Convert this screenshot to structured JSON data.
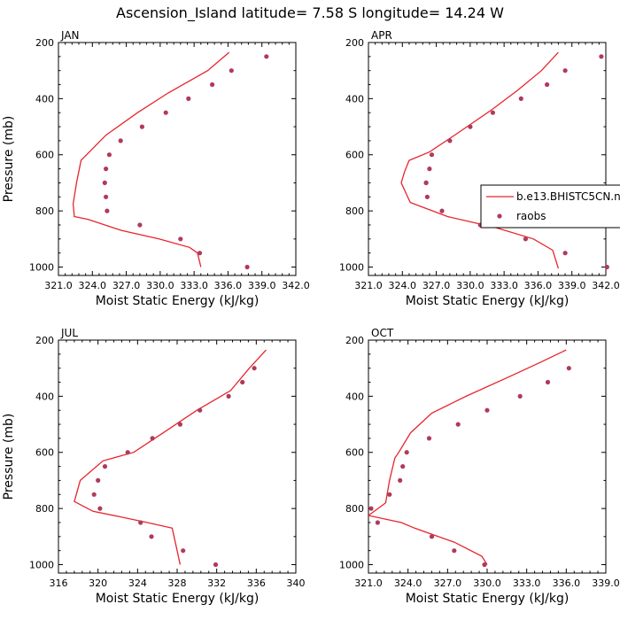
{
  "figure": {
    "title": "Ascension_Island  latitude= 7.58 S longitude= 14.24 W"
  },
  "legend": {
    "placement": "right-middle of APR panel",
    "model_label": "b.e13.BHISTC5CN.n",
    "obs_label": "raobs"
  },
  "colors": {
    "model_line": "#e8242c",
    "obs_marker": "#b03a5b",
    "axis": "#000000"
  },
  "chart_data": [
    {
      "type": "line",
      "panel": "JAN",
      "title": "JAN",
      "xlabel": "Moist Static Energy (kJ/kg)",
      "ylabel": "Pressure (mb)",
      "xlim": [
        321.0,
        342.0
      ],
      "ylim": [
        1030,
        200
      ],
      "xticks": [
        321.0,
        324.0,
        327.0,
        330.0,
        333.0,
        336.0,
        339.0,
        342.0
      ],
      "xtick_labels": [
        "321.0",
        "324.0",
        "327.0",
        "330.0",
        "333.0",
        "336.0",
        "339.0",
        "342.0"
      ],
      "yticks": [
        200,
        400,
        600,
        800,
        1000
      ],
      "ytick_labels": [
        "200",
        "400",
        "600",
        "800",
        "1000"
      ],
      "series": [
        {
          "kind": "line",
          "x": [
            336.1,
            334.2,
            330.7,
            328.0,
            325.2,
            323.0,
            322.6,
            322.3,
            322.4,
            323.6,
            326.6,
            329.9,
            332.6,
            333.3,
            333.6
          ],
          "y": [
            235,
            300,
            380,
            450,
            530,
            620,
            700,
            775,
            820,
            830,
            870,
            900,
            930,
            950,
            1000
          ]
        },
        {
          "kind": "scatter",
          "x": [
            339.4,
            336.3,
            334.6,
            332.5,
            330.5,
            328.4,
            326.5,
            325.5,
            325.2,
            325.1,
            325.2,
            325.3,
            328.2,
            331.8,
            333.5,
            337.7
          ],
          "y": [
            250,
            300,
            350,
            400,
            450,
            500,
            550,
            600,
            650,
            700,
            750,
            800,
            850,
            900,
            950,
            1000
          ]
        }
      ]
    },
    {
      "type": "line",
      "panel": "APR",
      "title": "APR",
      "xlabel": "Moist Static Energy (kJ/kg)",
      "ylabel": "",
      "xlim": [
        321.0,
        342.0
      ],
      "ylim": [
        1030,
        200
      ],
      "xticks": [
        321.0,
        324.0,
        327.0,
        330.0,
        333.0,
        336.0,
        339.0,
        342.0
      ],
      "xtick_labels": [
        "321.0",
        "324.0",
        "327.0",
        "330.0",
        "333.0",
        "336.0",
        "339.0",
        "342.0"
      ],
      "yticks": [
        200,
        400,
        600,
        800,
        1000
      ],
      "ytick_labels": [
        "200",
        "400",
        "600",
        "800",
        "1000"
      ],
      "series": [
        {
          "kind": "line",
          "x": [
            337.8,
            336.3,
            334.2,
            331.9,
            329.0,
            326.4,
            324.6,
            324.2,
            323.9,
            324.7,
            328.0,
            332.3,
            335.6,
            337.3,
            337.8
          ],
          "y": [
            235,
            300,
            370,
            440,
            520,
            590,
            620,
            660,
            700,
            770,
            820,
            860,
            900,
            940,
            1005
          ]
        },
        {
          "kind": "scatter",
          "x": [
            341.6,
            338.4,
            336.8,
            334.5,
            332.0,
            330.0,
            328.2,
            326.6,
            326.4,
            326.1,
            326.1,
            326.2,
            327.5,
            330.9,
            334.9,
            338.4,
            342.1
          ],
          "y": [
            250,
            300,
            350,
            400,
            450,
            500,
            550,
            600,
            650,
            700,
            700,
            750,
            800,
            850,
            900,
            950,
            1000
          ]
        }
      ]
    },
    {
      "type": "line",
      "panel": "JUL",
      "title": "JUL",
      "xlabel": "Moist Static Energy (kJ/kg)",
      "ylabel": "Pressure (mb)",
      "xlim": [
        316,
        340
      ],
      "ylim": [
        1030,
        200
      ],
      "xticks": [
        316,
        320,
        324,
        328,
        332,
        336,
        340
      ],
      "xtick_labels": [
        "316",
        "320",
        "324",
        "328",
        "332",
        "336",
        "340"
      ],
      "yticks": [
        200,
        400,
        600,
        800,
        1000
      ],
      "ytick_labels": [
        "200",
        "400",
        "600",
        "800",
        "1000"
      ],
      "series": [
        {
          "kind": "line",
          "x": [
            337.0,
            335.3,
            333.4,
            330.0,
            326.6,
            323.6,
            320.5,
            318.2,
            317.6,
            319.5,
            322.3,
            325.0,
            327.5,
            328.0,
            328.3
          ],
          "y": [
            235,
            300,
            380,
            450,
            530,
            600,
            630,
            700,
            775,
            810,
            830,
            850,
            870,
            950,
            1000
          ]
        },
        {
          "kind": "scatter",
          "x": [
            335.8,
            334.6,
            333.2,
            330.3,
            328.3,
            325.5,
            323.0,
            320.7,
            320.0,
            319.6,
            320.2,
            324.3,
            325.4,
            328.6,
            331.9
          ],
          "y": [
            300,
            350,
            400,
            450,
            500,
            550,
            600,
            650,
            700,
            750,
            800,
            850,
            900,
            950,
            1000
          ]
        }
      ]
    },
    {
      "type": "line",
      "panel": "OCT",
      "title": "OCT",
      "xlabel": "Moist Static Energy (kJ/kg)",
      "ylabel": "",
      "xlim": [
        321.0,
        339.0
      ],
      "ylim": [
        1030,
        200
      ],
      "xticks": [
        321.0,
        324.0,
        327.0,
        330.0,
        333.0,
        336.0,
        339.0
      ],
      "xtick_labels": [
        "321.0",
        "324.0",
        "327.0",
        "330.0",
        "333.0",
        "336.0",
        "339.0"
      ],
      "yticks": [
        200,
        400,
        600,
        800,
        1000
      ],
      "ytick_labels": [
        "200",
        "400",
        "600",
        "800",
        "1000"
      ],
      "series": [
        {
          "kind": "line",
          "x": [
            336.0,
            334.0,
            331.7,
            328.4,
            325.8,
            324.2,
            323.3,
            323.0,
            322.6,
            322.3,
            321.0,
            323.5,
            324.5,
            327.5,
            329.6,
            330.0
          ],
          "y": [
            235,
            280,
            330,
            400,
            460,
            530,
            600,
            620,
            700,
            780,
            825,
            850,
            870,
            920,
            970,
            1000
          ]
        },
        {
          "kind": "scatter",
          "x": [
            336.2,
            334.6,
            332.5,
            330.0,
            327.8,
            325.6,
            323.9,
            323.6,
            323.4,
            322.6,
            321.2,
            321.7,
            325.8,
            327.5,
            329.8
          ],
          "y": [
            300,
            350,
            400,
            450,
            500,
            550,
            600,
            650,
            700,
            750,
            800,
            850,
            900,
            950,
            1000
          ]
        }
      ]
    }
  ]
}
